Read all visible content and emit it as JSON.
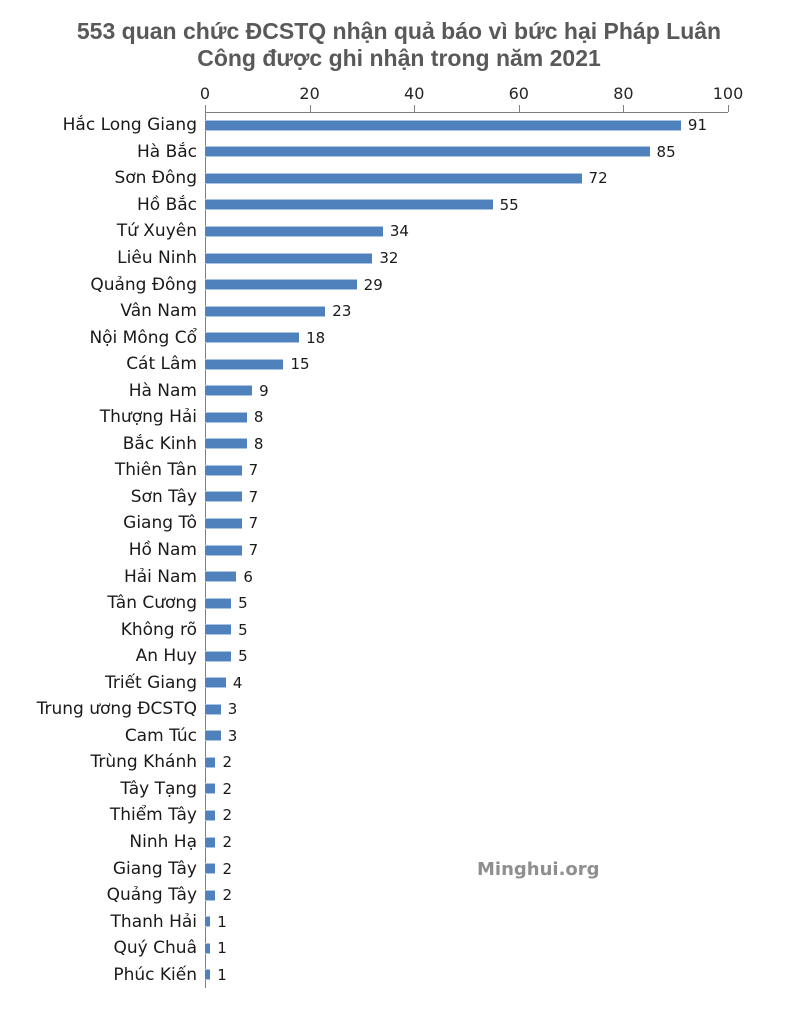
{
  "title": {
    "line1": "553 quan chức ĐCSTQ nhận quả báo vì bức hại Pháp Luân",
    "line2": "Công được ghi nhận trong năm 2021"
  },
  "watermark": "Minghui.org",
  "chart_data": {
    "type": "bar",
    "orientation": "horizontal",
    "title": "553 quan chức ĐCSTQ nhận quả báo vì bức hại Pháp Luân Công được ghi nhận trong năm 2021",
    "xlabel": "",
    "ylabel": "",
    "xlim": [
      0,
      100
    ],
    "x_ticks": [
      0,
      20,
      40,
      60,
      80,
      100
    ],
    "grid": false,
    "legend": false,
    "value_labels": true,
    "bar_color": "#4f81bd",
    "bar_edge_color": "#a9c3e2",
    "axis_color": "#7f7f7f",
    "categories": [
      "Hắc Long Giang",
      "Hà Bắc",
      "Sơn Đông",
      "Hồ Bắc",
      "Tứ Xuyên",
      "Liêu Ninh",
      "Quảng Đông",
      "Vân Nam",
      "Nội Mông Cổ",
      "Cát Lâm",
      "Hà Nam",
      "Thượng Hải",
      "Bắc Kinh",
      "Thiên Tân",
      "Sơn Tây",
      "Giang Tô",
      "Hồ Nam",
      "Hải Nam",
      "Tân Cương",
      "Không rõ",
      "An Huy",
      "Triết Giang",
      "Trung ương ĐCSTQ",
      "Cam Túc",
      "Trùng Khánh",
      "Tây Tạng",
      "Thiểm Tây",
      "Ninh Hạ",
      "Giang Tây",
      "Quảng Tây",
      "Thanh Hải",
      "Quý Chuâ",
      "Phúc Kiến"
    ],
    "values": [
      91,
      85,
      72,
      55,
      34,
      32,
      29,
      23,
      18,
      15,
      9,
      8,
      8,
      7,
      7,
      7,
      7,
      6,
      5,
      5,
      5,
      4,
      3,
      3,
      2,
      2,
      2,
      2,
      2,
      2,
      1,
      1,
      1
    ],
    "total": 553
  }
}
